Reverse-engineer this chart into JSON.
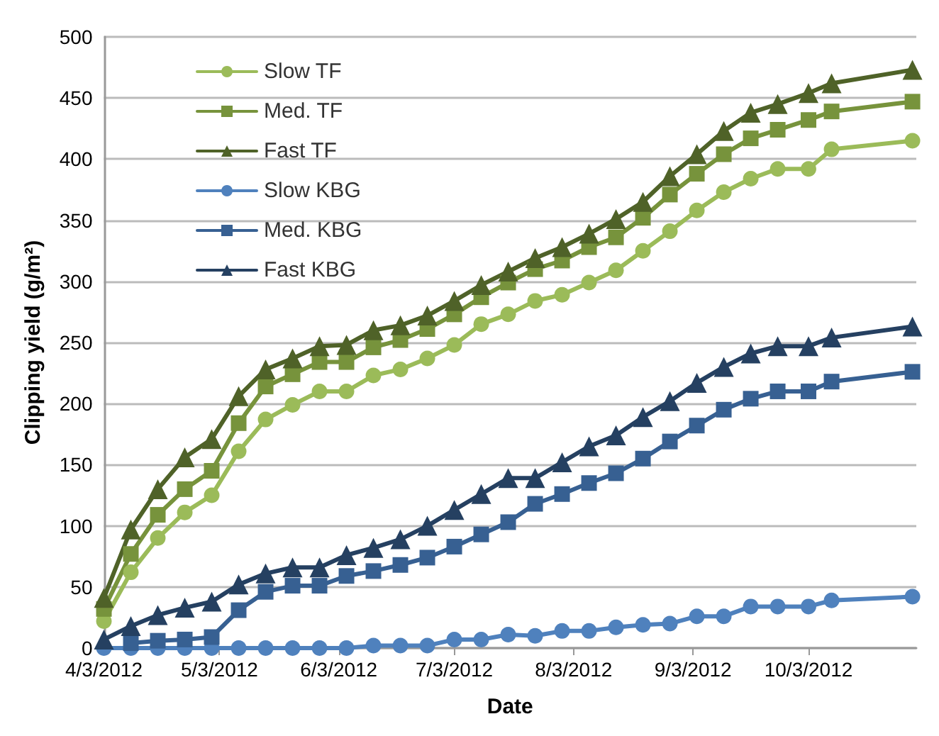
{
  "chart_data": {
    "type": "line",
    "xlabel": "Date",
    "ylabel": "Clipping yield (g/m²)",
    "x": [
      "2012-04-03",
      "2012-04-10",
      "2012-04-17",
      "2012-04-24",
      "2012-05-01",
      "2012-05-08",
      "2012-05-15",
      "2012-05-22",
      "2012-05-29",
      "2012-06-05",
      "2012-06-12",
      "2012-06-19",
      "2012-06-26",
      "2012-07-03",
      "2012-07-10",
      "2012-07-17",
      "2012-07-24",
      "2012-07-31",
      "2012-08-07",
      "2012-08-14",
      "2012-08-21",
      "2012-08-28",
      "2012-09-04",
      "2012-09-11",
      "2012-09-18",
      "2012-09-25",
      "2012-10-03",
      "2012-10-09",
      "2012-10-30"
    ],
    "series": [
      {
        "name": "Slow TF",
        "color": "#9bbb59",
        "marker": "circle",
        "values": [
          22,
          62,
          90,
          111,
          125,
          161,
          187,
          199,
          210,
          210,
          223,
          228,
          237,
          248,
          265,
          273,
          284,
          289,
          299,
          309,
          325,
          341,
          358,
          373,
          384,
          392,
          392,
          408,
          415
        ]
      },
      {
        "name": "Med. TF",
        "color": "#77933c",
        "marker": "square",
        "values": [
          32,
          77,
          109,
          130,
          145,
          184,
          214,
          224,
          234,
          234,
          246,
          252,
          261,
          273,
          287,
          299,
          310,
          317,
          328,
          336,
          352,
          371,
          388,
          404,
          417,
          424,
          432,
          439,
          447
        ]
      },
      {
        "name": "Fast TF",
        "color": "#4f6228",
        "marker": "triangle",
        "values": [
          41,
          97,
          130,
          156,
          171,
          206,
          228,
          237,
          247,
          248,
          260,
          264,
          272,
          284,
          297,
          308,
          319,
          328,
          339,
          351,
          365,
          386,
          404,
          423,
          438,
          445,
          454,
          462,
          473
        ]
      },
      {
        "name": "Slow KBG",
        "color": "#4f81bd",
        "marker": "circle",
        "values": [
          0,
          0,
          0,
          0,
          0,
          0,
          0,
          0,
          0,
          0,
          2,
          2,
          2,
          7,
          7,
          11,
          10,
          14,
          14,
          17,
          19,
          20,
          26,
          26,
          34,
          34,
          34,
          39,
          42
        ]
      },
      {
        "name": "Med. KBG",
        "color": "#376092",
        "marker": "square",
        "values": [
          null,
          4,
          6,
          7,
          9,
          31,
          46,
          51,
          51,
          59,
          63,
          68,
          74,
          83,
          93,
          103,
          118,
          126,
          135,
          143,
          155,
          169,
          182,
          195,
          204,
          210,
          210,
          218,
          226
        ]
      },
      {
        "name": "Fast KBG",
        "color": "#254061",
        "marker": "triangle",
        "values": [
          7,
          18,
          27,
          33,
          38,
          52,
          61,
          66,
          66,
          76,
          82,
          89,
          100,
          113,
          126,
          139,
          139,
          152,
          165,
          174,
          189,
          202,
          217,
          230,
          241,
          247,
          247,
          254,
          263
        ]
      }
    ],
    "xlim": [
      "2012-04-03",
      "2012-10-31"
    ],
    "xticks": [
      {
        "value": "2012-04-03",
        "label": "4/3/2012"
      },
      {
        "value": "2012-05-03",
        "label": "5/3/2012"
      },
      {
        "value": "2012-06-03",
        "label": "6/3/2012"
      },
      {
        "value": "2012-07-03",
        "label": "7/3/2012"
      },
      {
        "value": "2012-08-03",
        "label": "8/3/2012"
      },
      {
        "value": "2012-09-03",
        "label": "9/3/2012"
      },
      {
        "value": "2012-10-03",
        "label": "10/3/2012"
      }
    ],
    "ylim": [
      0,
      500
    ],
    "yticks": [
      0,
      50,
      100,
      150,
      200,
      250,
      300,
      350,
      400,
      450,
      500
    ],
    "grid": "y",
    "legend": "top left",
    "line_style": "solid"
  }
}
